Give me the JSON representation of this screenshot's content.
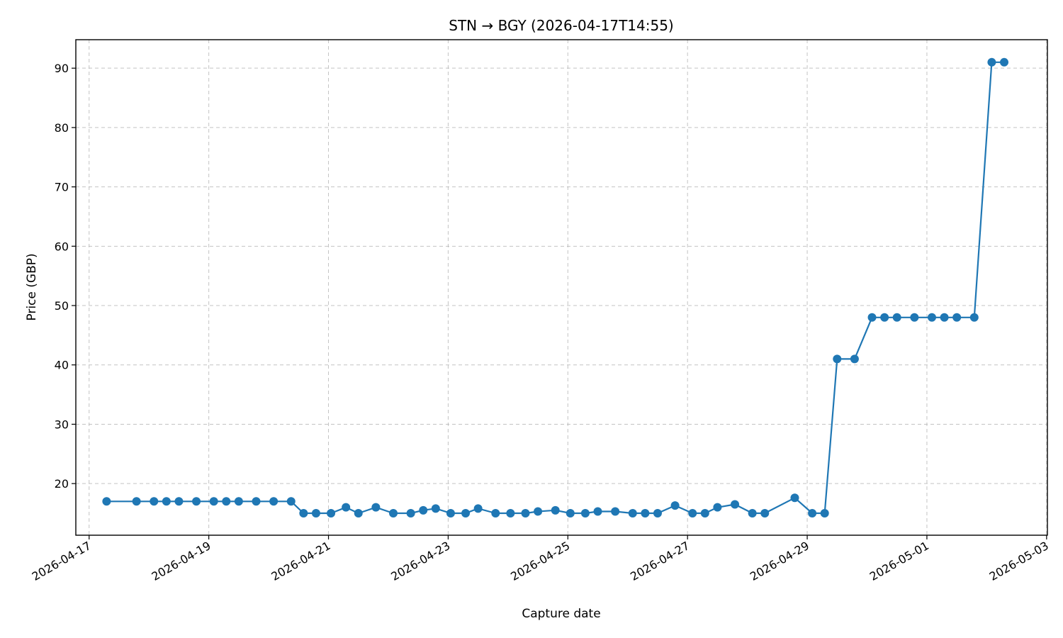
{
  "chart_data": {
    "type": "line",
    "title": "STN → BGY (2026-04-17T14:55)",
    "xlabel": "Capture date",
    "ylabel": "Price (GBP)",
    "x_axis_type": "date",
    "xlim": [
      "2026-04-16T18:40",
      "2026-05-03T00:20"
    ],
    "ylim": [
      11.3,
      94.8
    ],
    "x_ticks": [
      "2026-04-17",
      "2026-04-19",
      "2026-04-21",
      "2026-04-23",
      "2026-04-25",
      "2026-04-27",
      "2026-04-29",
      "2026-05-01",
      "2026-05-03"
    ],
    "y_ticks": [
      20,
      30,
      40,
      50,
      60,
      70,
      80,
      90
    ],
    "grid": true,
    "legend": "none",
    "series_color": "#1f77b4",
    "series": [
      {
        "name": "",
        "x": [
          "2026-04-17T07:00",
          "2026-04-17T19:00",
          "2026-04-18T02:00",
          "2026-04-18T07:00",
          "2026-04-18T12:00",
          "2026-04-18T19:00",
          "2026-04-19T02:00",
          "2026-04-19T07:00",
          "2026-04-19T12:00",
          "2026-04-19T19:00",
          "2026-04-20T02:00",
          "2026-04-20T09:00",
          "2026-04-20T14:00",
          "2026-04-20T19:00",
          "2026-04-21T01:00",
          "2026-04-21T07:00",
          "2026-04-21T12:00",
          "2026-04-21T19:00",
          "2026-04-22T02:00",
          "2026-04-22T09:00",
          "2026-04-22T14:00",
          "2026-04-22T19:00",
          "2026-04-23T01:00",
          "2026-04-23T07:00",
          "2026-04-23T12:00",
          "2026-04-23T19:00",
          "2026-04-24T01:00",
          "2026-04-24T07:00",
          "2026-04-24T12:00",
          "2026-04-24T19:00",
          "2026-04-25T01:00",
          "2026-04-25T07:00",
          "2026-04-25T12:00",
          "2026-04-25T19:00",
          "2026-04-26T02:00",
          "2026-04-26T07:00",
          "2026-04-26T12:00",
          "2026-04-26T19:00",
          "2026-04-27T02:00",
          "2026-04-27T07:00",
          "2026-04-27T12:00",
          "2026-04-27T19:00",
          "2026-04-28T02:00",
          "2026-04-28T07:00",
          "2026-04-28T19:00",
          "2026-04-29T02:00",
          "2026-04-29T07:00",
          "2026-04-29T12:00",
          "2026-04-29T19:00",
          "2026-04-30T02:00",
          "2026-04-30T07:00",
          "2026-04-30T12:00",
          "2026-04-30T19:00",
          "2026-05-01T02:00",
          "2026-05-01T07:00",
          "2026-05-01T12:00",
          "2026-05-01T19:00",
          "2026-05-02T02:00",
          "2026-05-02T07:00"
        ],
        "values": [
          17,
          17,
          17,
          17,
          17,
          17,
          17,
          17,
          17,
          17,
          17,
          17,
          15,
          15,
          15,
          16,
          15,
          16,
          15,
          15,
          15.5,
          15.8,
          15,
          15,
          15.8,
          15,
          15,
          15,
          15.3,
          15.5,
          15,
          15,
          15.3,
          15.3,
          15,
          15,
          15,
          16.3,
          15,
          15,
          16,
          16.5,
          15,
          15,
          17.6,
          15,
          15,
          41,
          41,
          48,
          48,
          48,
          48,
          48,
          48,
          48,
          48,
          91,
          91
        ]
      }
    ]
  }
}
